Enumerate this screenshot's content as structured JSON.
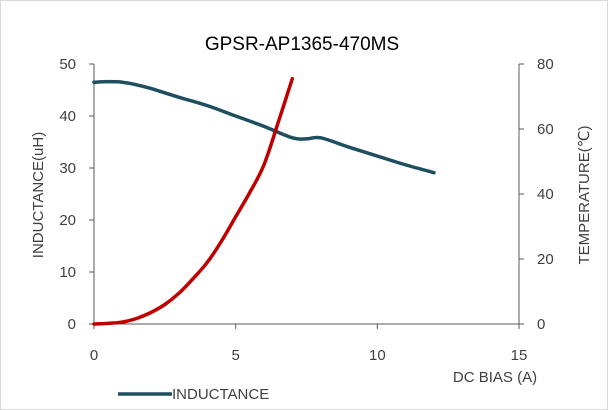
{
  "chart_data": {
    "type": "line",
    "title": "GPSR-AP1365-470MS",
    "xlabel": "DC  BIAS (A)",
    "ylabel_left": "INDUCTANCE(uH)",
    "ylabel_right": "TEMPERATURE(℃)",
    "xlim": [
      0,
      15
    ],
    "ylim_left": [
      0,
      50
    ],
    "ylim_right": [
      0,
      80
    ],
    "x_ticks": [
      "0",
      "5",
      "10",
      "15"
    ],
    "y_left_ticks": [
      "0",
      "10",
      "20",
      "30",
      "40",
      "50"
    ],
    "y_right_ticks": [
      "0",
      "20",
      "40",
      "60",
      "80"
    ],
    "grid": false,
    "legend_position": "bottom",
    "series": [
      {
        "name": "INDUCTANCE",
        "axis": "left",
        "color": "#1f4e5f",
        "x": [
          0,
          0.5,
          1,
          1.5,
          2,
          3,
          4,
          5,
          6,
          7,
          7.5,
          8,
          9,
          10,
          11,
          12
        ],
        "y": [
          46.5,
          46.6,
          46.5,
          46,
          45.3,
          43.6,
          42,
          40,
          38,
          35.8,
          35.6,
          35.8,
          34,
          32.3,
          30.6,
          29.1
        ]
      },
      {
        "axis": "right",
        "color": "#c00000",
        "x": [
          0,
          0.5,
          1,
          1.5,
          2,
          2.5,
          3,
          3.5,
          4,
          4.5,
          5,
          5.5,
          6,
          6.5,
          7
        ],
        "y": [
          0,
          0.2,
          0.6,
          1.7,
          3.5,
          6,
          9.5,
          14,
          19,
          25.5,
          33,
          40.5,
          49,
          62,
          75.5
        ]
      }
    ]
  }
}
